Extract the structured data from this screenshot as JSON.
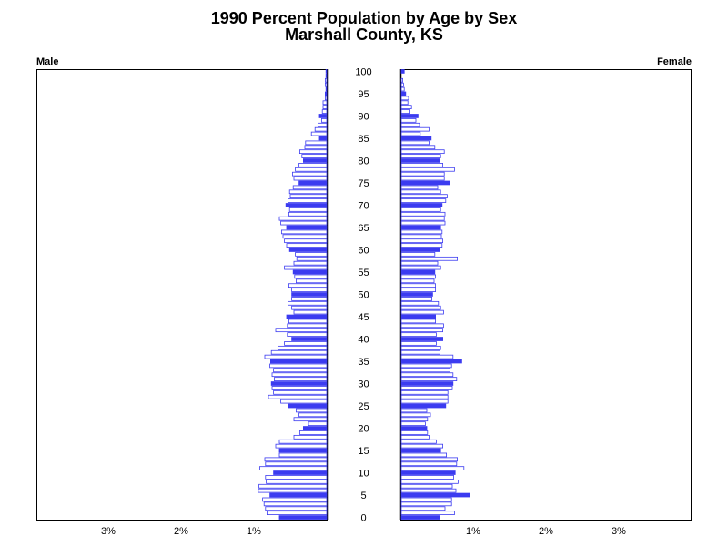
{
  "chart_data": {
    "type": "bar",
    "title": "1990 Percent Population by Age by Sex",
    "subtitle": "Marshall County, KS",
    "left_label": "Male",
    "right_label": "Female",
    "x_ticks": [
      "3%",
      "2%",
      "1%"
    ],
    "x_tick_values": [
      3,
      2,
      1
    ],
    "female_x_ticks": [
      "1%",
      "2%",
      "3%"
    ],
    "xlim": [
      0,
      4
    ],
    "age_labels": [
      "100",
      "95",
      "90",
      "85",
      "80",
      "75",
      "70",
      "65",
      "60",
      "55",
      "50",
      "45",
      "40",
      "35",
      "30",
      "25",
      "20",
      "15",
      "10",
      "5",
      "0"
    ],
    "age_label_values": [
      100,
      95,
      90,
      85,
      80,
      75,
      70,
      65,
      60,
      55,
      50,
      45,
      40,
      35,
      30,
      25,
      20,
      15,
      10,
      5,
      0
    ],
    "ages": [
      0,
      1,
      2,
      3,
      4,
      5,
      6,
      7,
      8,
      9,
      10,
      11,
      12,
      13,
      14,
      15,
      16,
      17,
      18,
      19,
      20,
      21,
      22,
      23,
      24,
      25,
      26,
      27,
      28,
      29,
      30,
      31,
      32,
      33,
      34,
      35,
      36,
      37,
      38,
      39,
      40,
      41,
      42,
      43,
      44,
      45,
      46,
      47,
      48,
      49,
      50,
      51,
      52,
      53,
      54,
      55,
      56,
      57,
      58,
      59,
      60,
      61,
      62,
      63,
      64,
      65,
      66,
      67,
      68,
      69,
      70,
      71,
      72,
      73,
      74,
      75,
      76,
      77,
      78,
      79,
      80,
      81,
      82,
      83,
      84,
      85,
      86,
      87,
      88,
      89,
      90,
      91,
      92,
      93,
      94,
      95,
      96,
      97,
      98,
      99,
      100
    ],
    "series": [
      {
        "name": "Male",
        "values": [
          0.65,
          0.82,
          0.84,
          0.86,
          0.88,
          0.78,
          0.94,
          0.93,
          0.83,
          0.84,
          0.73,
          0.92,
          0.84,
          0.85,
          0.65,
          0.65,
          0.7,
          0.65,
          0.45,
          0.37,
          0.32,
          0.25,
          0.45,
          0.38,
          0.42,
          0.52,
          0.63,
          0.8,
          0.73,
          0.75,
          0.76,
          0.72,
          0.75,
          0.73,
          0.78,
          0.77,
          0.85,
          0.76,
          0.67,
          0.58,
          0.48,
          0.54,
          0.7,
          0.54,
          0.52,
          0.55,
          0.45,
          0.48,
          0.53,
          0.48,
          0.48,
          0.48,
          0.52,
          0.42,
          0.44,
          0.46,
          0.58,
          0.45,
          0.41,
          0.43,
          0.51,
          0.55,
          0.58,
          0.6,
          0.62,
          0.55,
          0.63,
          0.65,
          0.52,
          0.51,
          0.56,
          0.53,
          0.5,
          0.51,
          0.46,
          0.38,
          0.45,
          0.47,
          0.43,
          0.38,
          0.32,
          0.34,
          0.37,
          0.3,
          0.29,
          0.1,
          0.21,
          0.16,
          0.12,
          0.07,
          0.1,
          0.06,
          0.05,
          0.05,
          0.02,
          0.02,
          0.01,
          0.02,
          0.02,
          0.01,
          0.01
        ],
        "color": "#3b3bf0"
      },
      {
        "name": "Female",
        "values": [
          0.52,
          0.73,
          0.6,
          0.69,
          0.69,
          0.94,
          0.75,
          0.7,
          0.78,
          0.72,
          0.74,
          0.86,
          0.76,
          0.77,
          0.62,
          0.54,
          0.57,
          0.48,
          0.38,
          0.36,
          0.35,
          0.33,
          0.36,
          0.4,
          0.35,
          0.61,
          0.64,
          0.64,
          0.64,
          0.7,
          0.71,
          0.76,
          0.71,
          0.67,
          0.69,
          0.83,
          0.71,
          0.53,
          0.54,
          0.48,
          0.57,
          0.48,
          0.57,
          0.58,
          0.47,
          0.47,
          0.58,
          0.54,
          0.51,
          0.42,
          0.43,
          0.47,
          0.47,
          0.45,
          0.47,
          0.46,
          0.54,
          0.5,
          0.77,
          0.46,
          0.52,
          0.56,
          0.57,
          0.55,
          0.56,
          0.54,
          0.6,
          0.59,
          0.6,
          0.54,
          0.56,
          0.61,
          0.63,
          0.54,
          0.5,
          0.67,
          0.59,
          0.59,
          0.73,
          0.57,
          0.53,
          0.54,
          0.59,
          0.46,
          0.38,
          0.41,
          0.26,
          0.38,
          0.25,
          0.2,
          0.23,
          0.12,
          0.14,
          0.09,
          0.1,
          0.06,
          0.04,
          0.03,
          0.02,
          0.0,
          0.04
        ],
        "color": "#3b3bf0"
      }
    ],
    "outline_color": "#3b3bf0",
    "solid_every": 5,
    "grid": false
  }
}
